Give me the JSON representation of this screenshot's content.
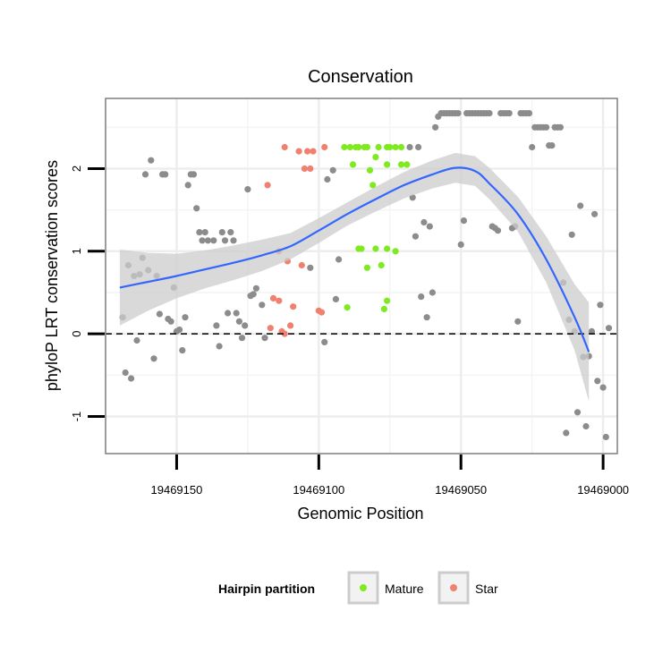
{
  "chart_data": {
    "type": "scatter",
    "title": "Conservation",
    "xlabel": "Genomic Position",
    "ylabel": "phyloP LRT conservation scores",
    "x_reversed": true,
    "xlim": [
      19469175,
      19468995
    ],
    "ylim": [
      -1.45,
      2.85
    ],
    "x_ticks": [
      19469150,
      19469100,
      19469050,
      19469000
    ],
    "x_tick_labels": [
      "19469150",
      "19469100",
      "19469050",
      "19469000"
    ],
    "y_ticks": [
      -1,
      0,
      1,
      2
    ],
    "y_tick_labels": [
      "-1",
      "0",
      "1",
      "2"
    ],
    "reference_line": 0,
    "grid": true,
    "legend": {
      "title": "Hairpin partition",
      "position": "bottom",
      "entries": [
        {
          "label": "Mature",
          "color": "#7FEA1F"
        },
        {
          "label": "Star",
          "color": "#F08070"
        }
      ]
    },
    "colors": {
      "Other": "#8C8C8C",
      "Mature": "#7FEA1F",
      "Star": "#F08070",
      "smooth": "#3366FF",
      "band": "#CCCCCC"
    },
    "smooth": {
      "x": [
        19469170,
        19469160,
        19469150,
        19469140,
        19469130,
        19469120,
        19469110,
        19469100,
        19469090,
        19469080,
        19469070,
        19469060,
        19469052,
        19469045,
        19469040,
        19469030,
        19469020,
        19469010,
        19469005
      ],
      "y": [
        0.56,
        0.63,
        0.7,
        0.78,
        0.86,
        0.95,
        1.06,
        1.25,
        1.45,
        1.63,
        1.8,
        1.93,
        2.01,
        1.97,
        1.82,
        1.45,
        0.9,
        0.2,
        -0.22
      ],
      "lower": [
        0.1,
        0.28,
        0.43,
        0.55,
        0.65,
        0.76,
        0.9,
        1.1,
        1.31,
        1.48,
        1.64,
        1.76,
        1.83,
        1.79,
        1.63,
        1.24,
        0.62,
        -0.2,
        -0.82
      ],
      "upper": [
        1.02,
        0.98,
        0.97,
        1.01,
        1.07,
        1.14,
        1.22,
        1.4,
        1.59,
        1.78,
        1.96,
        2.1,
        2.19,
        2.15,
        2.01,
        1.66,
        1.18,
        0.6,
        0.38
      ]
    },
    "series": [
      {
        "name": "Mature",
        "points": [
          [
            19469091,
            2.26
          ],
          [
            19469089,
            2.26
          ],
          [
            19469087,
            2.26
          ],
          [
            19469086,
            2.26
          ],
          [
            19469084,
            2.26
          ],
          [
            19469083,
            2.26
          ],
          [
            19469079,
            2.26
          ],
          [
            19469076,
            2.26
          ],
          [
            19469075,
            2.26
          ],
          [
            19469073,
            2.26
          ],
          [
            19469071,
            2.26
          ],
          [
            19469088,
            2.05
          ],
          [
            19469082,
            1.98
          ],
          [
            19469080,
            2.14
          ],
          [
            19469076,
            2.05
          ],
          [
            19469071,
            2.05
          ],
          [
            19469069,
            2.05
          ],
          [
            19469081,
            1.8
          ],
          [
            19469086,
            1.03
          ],
          [
            19469085,
            1.03
          ],
          [
            19469080,
            1.03
          ],
          [
            19469076,
            1.03
          ],
          [
            19469073,
            1.0
          ],
          [
            19469083,
            0.8
          ],
          [
            19469078,
            0.83
          ],
          [
            19469090,
            0.32
          ],
          [
            19469076,
            0.4
          ],
          [
            19469077,
            0.3
          ]
        ]
      },
      {
        "name": "Star",
        "points": [
          [
            19469112,
            2.26
          ],
          [
            19469107,
            2.21
          ],
          [
            19469104,
            2.21
          ],
          [
            19469102,
            2.21
          ],
          [
            19469098,
            2.26
          ],
          [
            19469105,
            2.0
          ],
          [
            19469103,
            2.0
          ],
          [
            19469118,
            1.8
          ],
          [
            19469114,
            1.0
          ],
          [
            19469111,
            0.88
          ],
          [
            19469106,
            0.83
          ],
          [
            19469116,
            0.43
          ],
          [
            19469114,
            0.4
          ],
          [
            19469109,
            0.33
          ],
          [
            19469100,
            0.28
          ],
          [
            19469099,
            0.26
          ],
          [
            19469117,
            0.07
          ],
          [
            19469113,
            0.03
          ],
          [
            19469112,
            0.0
          ],
          [
            19469110,
            0.1
          ]
        ]
      },
      {
        "name": "Other",
        "points": [
          [
            19469169,
            0.2
          ],
          [
            19469168,
            -0.47
          ],
          [
            19469167,
            0.83
          ],
          [
            19469166,
            -0.54
          ],
          [
            19469165,
            0.7
          ],
          [
            19469164,
            -0.08
          ],
          [
            19469163,
            0.72
          ],
          [
            19469162,
            0.92
          ],
          [
            19469161,
            1.93
          ],
          [
            19469160,
            0.77
          ],
          [
            19469159,
            2.1
          ],
          [
            19469158,
            -0.3
          ],
          [
            19469157,
            0.7
          ],
          [
            19469156,
            0.24
          ],
          [
            19469155,
            1.93
          ],
          [
            19469154,
            1.93
          ],
          [
            19469153,
            0.18
          ],
          [
            19469152,
            0.15
          ],
          [
            19469151,
            0.56
          ],
          [
            19469150,
            0.03
          ],
          [
            19469149,
            0.05
          ],
          [
            19469148,
            -0.2
          ],
          [
            19469147,
            0.2
          ],
          [
            19469146,
            1.8
          ],
          [
            19469145,
            1.93
          ],
          [
            19469144,
            1.93
          ],
          [
            19469143,
            1.52
          ],
          [
            19469142,
            1.23
          ],
          [
            19469141,
            1.13
          ],
          [
            19469140,
            1.23
          ],
          [
            19469139,
            1.13
          ],
          [
            19469137,
            1.13
          ],
          [
            19469136,
            0.1
          ],
          [
            19469135,
            -0.15
          ],
          [
            19469134,
            1.23
          ],
          [
            19469133,
            1.13
          ],
          [
            19469132,
            0.25
          ],
          [
            19469131,
            1.23
          ],
          [
            19469130,
            1.13
          ],
          [
            19469129,
            0.25
          ],
          [
            19469128,
            0.15
          ],
          [
            19469127,
            -0.05
          ],
          [
            19469126,
            0.1
          ],
          [
            19469125,
            1.75
          ],
          [
            19469124,
            0.46
          ],
          [
            19469123,
            0.48
          ],
          [
            19469122,
            0.55
          ],
          [
            19469120,
            0.35
          ],
          [
            19469119,
            -0.05
          ],
          [
            19469103,
            0.8
          ],
          [
            19469098,
            -0.1
          ],
          [
            19469097,
            1.87
          ],
          [
            19469095,
            1.98
          ],
          [
            19469094,
            0.42
          ],
          [
            19469093,
            0.9
          ],
          [
            19469064,
            0.45
          ],
          [
            19469063,
            1.35
          ],
          [
            19469062,
            0.2
          ],
          [
            19469061,
            1.3
          ],
          [
            19469060,
            0.5
          ],
          [
            19469059,
            2.5
          ],
          [
            19469066,
            1.18
          ],
          [
            19469065,
            2.26
          ],
          [
            19469068,
            2.26
          ],
          [
            19469067,
            1.65
          ],
          [
            19469058,
            2.63
          ],
          [
            19469057,
            2.67
          ],
          [
            19469056,
            2.67
          ],
          [
            19469055,
            2.67
          ],
          [
            19469054,
            2.67
          ],
          [
            19469053,
            2.67
          ],
          [
            19469052,
            2.67
          ],
          [
            19469051,
            2.67
          ],
          [
            19469050,
            1.08
          ],
          [
            19469049,
            1.37
          ],
          [
            19469048,
            2.67
          ],
          [
            19469047,
            2.67
          ],
          [
            19469046,
            2.67
          ],
          [
            19469045,
            2.67
          ],
          [
            19469044,
            2.67
          ],
          [
            19469043,
            2.67
          ],
          [
            19469042,
            2.67
          ],
          [
            19469041,
            2.67
          ],
          [
            19469040,
            2.67
          ],
          [
            19469039,
            1.3
          ],
          [
            19469038,
            1.28
          ],
          [
            19469037,
            1.25
          ],
          [
            19469036,
            2.67
          ],
          [
            19469035,
            2.67
          ],
          [
            19469034,
            2.67
          ],
          [
            19469033,
            2.67
          ],
          [
            19469032,
            1.28
          ],
          [
            19469031,
            1.3
          ],
          [
            19469030,
            0.15
          ],
          [
            19469029,
            2.67
          ],
          [
            19469028,
            2.67
          ],
          [
            19469027,
            2.67
          ],
          [
            19469026,
            2.67
          ],
          [
            19469025,
            2.26
          ],
          [
            19469024,
            2.5
          ],
          [
            19469023,
            2.5
          ],
          [
            19469022,
            2.5
          ],
          [
            19469021,
            2.5
          ],
          [
            19469020,
            2.5
          ],
          [
            19469019,
            2.28
          ],
          [
            19469018,
            2.28
          ],
          [
            19469017,
            2.5
          ],
          [
            19469016,
            2.5
          ],
          [
            19469015,
            2.5
          ],
          [
            19469014,
            0.62
          ],
          [
            19469013,
            -1.2
          ],
          [
            19469012,
            0.17
          ],
          [
            19469011,
            1.2
          ],
          [
            19469010,
            0.03
          ],
          [
            19469009,
            -0.95
          ],
          [
            19469008,
            1.55
          ],
          [
            19469007,
            -0.28
          ],
          [
            19469006,
            -1.12
          ],
          [
            19469005,
            -0.27
          ],
          [
            19469004,
            0.03
          ],
          [
            19469003,
            1.45
          ],
          [
            19469002,
            -0.57
          ],
          [
            19469001,
            0.35
          ],
          [
            19469000,
            -0.65
          ],
          [
            19468999,
            -1.25
          ],
          [
            19468998,
            0.07
          ]
        ]
      }
    ]
  }
}
